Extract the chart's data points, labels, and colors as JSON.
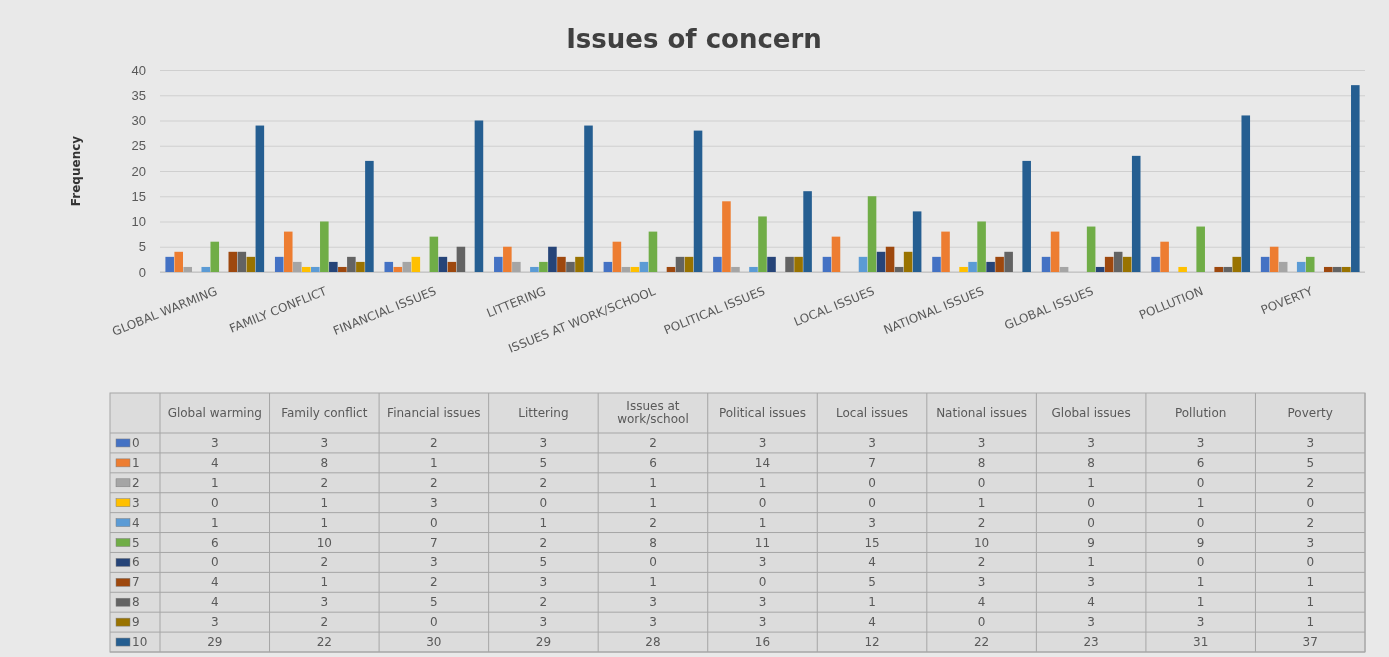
{
  "chart_data": {
    "type": "bar",
    "title": "Issues of concern",
    "ylabel": "Frequency",
    "categories": [
      "GLOBAL WARMING",
      "FAMILY CONFLICT",
      "FINANCIAL ISSUES",
      "LITTERING",
      "ISSUES AT WORK/SCHOOL",
      "POLITICAL ISSUES",
      "LOCAL ISSUES",
      "NATIONAL ISSUES",
      "GLOBAL ISSUES",
      "POLLUTION",
      "POVERTY"
    ],
    "annotations": [
      "Global warming",
      "Family conflict",
      "Financial issues",
      "Littering",
      "Issues at work/school",
      "Political issues",
      "Local issues",
      "National issues",
      "Global issues",
      "Pollution",
      "Poverty"
    ],
    "series": [
      {
        "name": "0",
        "color": "#4472c4",
        "values": [
          3,
          3,
          2,
          3,
          2,
          3,
          3,
          3,
          3,
          3,
          3
        ]
      },
      {
        "name": "1",
        "color": "#ed7d31",
        "values": [
          4,
          8,
          1,
          5,
          6,
          14,
          7,
          8,
          8,
          6,
          5
        ]
      },
      {
        "name": "2",
        "color": "#a5a5a5",
        "values": [
          1,
          2,
          2,
          2,
          1,
          1,
          0,
          0,
          1,
          0,
          2
        ]
      },
      {
        "name": "3",
        "color": "#ffc000",
        "values": [
          0,
          1,
          3,
          0,
          1,
          0,
          0,
          1,
          0,
          1,
          0
        ]
      },
      {
        "name": "4",
        "color": "#5b9bd5",
        "values": [
          1,
          1,
          0,
          1,
          2,
          1,
          3,
          2,
          0,
          0,
          2
        ]
      },
      {
        "name": "5",
        "color": "#70ad47",
        "values": [
          6,
          10,
          7,
          2,
          8,
          11,
          15,
          10,
          9,
          9,
          3
        ]
      },
      {
        "name": "6",
        "color": "#264478",
        "values": [
          0,
          2,
          3,
          5,
          0,
          3,
          4,
          2,
          1,
          0,
          0
        ]
      },
      {
        "name": "7",
        "color": "#9e480e",
        "values": [
          4,
          1,
          2,
          3,
          1,
          0,
          5,
          3,
          3,
          1,
          1
        ]
      },
      {
        "name": "8",
        "color": "#636363",
        "values": [
          4,
          3,
          5,
          2,
          3,
          3,
          1,
          4,
          4,
          1,
          1
        ]
      },
      {
        "name": "9",
        "color": "#997300",
        "values": [
          3,
          2,
          0,
          3,
          3,
          3,
          4,
          0,
          3,
          3,
          1
        ]
      },
      {
        "name": "10",
        "color": "#255e91",
        "values": [
          29,
          22,
          30,
          29,
          28,
          16,
          12,
          22,
          23,
          31,
          37
        ]
      }
    ],
    "ylim": [
      0,
      40
    ],
    "yticks": [
      0,
      5,
      10,
      15,
      20,
      25,
      30,
      35,
      40
    ],
    "grid": "y",
    "legend": "bottom",
    "data_labels": true
  }
}
